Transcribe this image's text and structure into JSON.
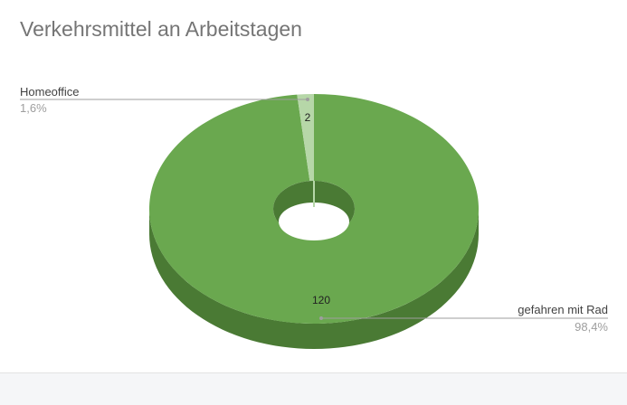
{
  "chart_data": {
    "type": "pie",
    "variant": "3d-donut",
    "title": "Verkehrsmittel an Arbeitstagen",
    "slices": [
      {
        "label": "Homeoffice",
        "value": 2,
        "percent": "1,6%",
        "color": "#b6d7a8"
      },
      {
        "label": "gefahren mit Rad",
        "value": 120,
        "percent": "98,4%",
        "color": "#6aa84f"
      }
    ],
    "legend": "none",
    "labels": "outside-with-leader-lines"
  },
  "colors": {
    "main_top": "#6aa84f",
    "main_side": "#4a7a34",
    "small_top": "#b6d7a8",
    "title": "#757575",
    "label": "#424242",
    "percent": "#9e9e9e",
    "leader": "#9e9e9e"
  }
}
